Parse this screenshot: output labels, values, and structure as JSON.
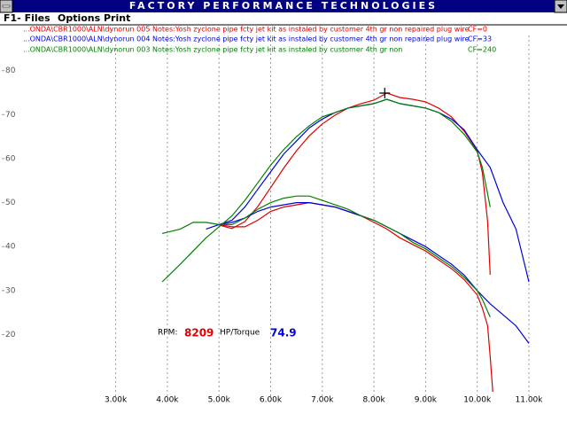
{
  "window": {
    "title": "FACTORY PERFORMANCE TECHNOLOGIES",
    "menu": [
      "F1- Files",
      "Options",
      "Print"
    ]
  },
  "readout": {
    "rpm_label": "RPM:",
    "rpm": 8209,
    "value_label": "HP/Torque",
    "value": 74.9
  },
  "chart_data": {
    "type": "line",
    "xlim": [
      1000,
      11000
    ],
    "ylim": [
      6,
      88
    ],
    "xticks": [
      {
        "value": 3000,
        "label": "3.00k"
      },
      {
        "value": 4000,
        "label": "4.00k"
      },
      {
        "value": 5000,
        "label": "5.00k"
      },
      {
        "value": 6000,
        "label": "6.00k"
      },
      {
        "value": 7000,
        "label": "7.00k"
      },
      {
        "value": 8000,
        "label": "8.00k"
      },
      {
        "value": 9000,
        "label": "9.00k"
      },
      {
        "value": 10000,
        "label": "10.00k"
      },
      {
        "value": 11000,
        "label": "11.00k"
      }
    ],
    "yticks": [
      20,
      30,
      40,
      50,
      60,
      70,
      80
    ],
    "grid": "x",
    "series": [
      {
        "name": "...ONDA\\CBR1000\\ALN\\dynorun 005",
        "notes": "Notes:Yosh zyclone pipe fcty jet kit as instaled by customer 4th gr non repaired plug wire",
        "cf": "CF=0",
        "color": "#e00000",
        "curves": [
          {
            "x": [
              5000,
              5250,
              5500,
              5750,
              6000,
              6250,
              6500,
              6750,
              7000,
              7250,
              7500,
              7750,
              8000,
              8250,
              8500,
              8750,
              9000,
              9250,
              9500,
              9750,
              10000,
              10100,
              10200,
              10250
            ],
            "values": [
              44.9,
              44.1,
              45.7,
              49.1,
              53.4,
              57.8,
              61.8,
              65.2,
              67.9,
              69.9,
              71.5,
              72.5,
              73.3,
              74.9,
              73.9,
              73.5,
              72.9,
              71.5,
              69.5,
              66.2,
              61.8,
              56.8,
              45.7,
              33.6
            ]
          },
          {
            "x": [
              5000,
              5250,
              5500,
              5750,
              6000,
              6250,
              6500,
              6750,
              7000,
              7250,
              7500,
              7750,
              8000,
              8250,
              8500,
              8750,
              9000,
              9250,
              9500,
              9750,
              10000,
              10100,
              10200,
              10250,
              10300
            ],
            "values": [
              45,
              44.5,
              44.5,
              46,
              48,
              49,
              49.5,
              50,
              49.5,
              49,
              48,
              47,
              45.5,
              44,
              42,
              40.5,
              39,
              37,
              35,
              32.5,
              29,
              26,
              22,
              15,
              7
            ]
          }
        ]
      },
      {
        "name": "...ONDA\\CBR1000\\ALN\\dynorun 004",
        "notes": "Notes:Yosh zyclone pipe fcty jet kit as instaled by customer 4th gr non repaired plug wire",
        "cf": "CF=33",
        "color": "#0000e0",
        "curves": [
          {
            "x": [
              5000,
              5250,
              5500,
              5750,
              6000,
              6250,
              6500,
              6750,
              7000,
              7250,
              7500,
              7750,
              8000,
              8250,
              8500,
              8750,
              9000,
              9250,
              9500,
              9750,
              10000,
              10250,
              10500,
              10750,
              11000
            ],
            "values": [
              45,
              46,
              49,
              53,
              57,
              61,
              64,
              67,
              69,
              70.5,
              71.5,
              72,
              72.5,
              73.5,
              72.5,
              72,
              71.5,
              70.5,
              69,
              66.5,
              62,
              58,
              50,
              44,
              32
            ]
          },
          {
            "x": [
              4750,
              5000,
              5250,
              5500,
              5750,
              6000,
              6250,
              6500,
              6750,
              7000,
              7250,
              7500,
              7750,
              8000,
              8250,
              8500,
              8750,
              9000,
              9250,
              9500,
              9750,
              10000,
              10250,
              10500,
              10750,
              11000
            ],
            "values": [
              44,
              45,
              45.5,
              46.5,
              48,
              49,
              49.5,
              50,
              50,
              49.5,
              49,
              48,
              47,
              46,
              44.5,
              43,
              41.5,
              40,
              38,
              36,
              33.5,
              30,
              27,
              24.5,
              22,
              18
            ]
          }
        ]
      },
      {
        "name": "...ONDA\\CBR1000\\ALN\\dynorun 003",
        "notes": "Notes:Yosh zyclone pipe fcty jet kit as instaled by customer 4th gr non",
        "cf": "CF=240",
        "color": "#008000",
        "curves": [
          {
            "x": [
              3900,
              4250,
              4500,
              4750,
              5000,
              5250,
              5500,
              5750,
              6000,
              6250,
              6500,
              6750,
              7000,
              7250,
              7500,
              7750,
              8000,
              8250,
              8500,
              8750,
              9000,
              9250,
              9500,
              9750,
              10000,
              10100,
              10200,
              10250
            ],
            "values": [
              32,
              36,
              39,
              42,
              44.5,
              47,
              50.5,
              54.5,
              58.5,
              62,
              65,
              67.5,
              69.5,
              70.5,
              71.5,
              72,
              72.5,
              73.5,
              72.5,
              72,
              71.5,
              70.5,
              68.5,
              65.5,
              61.5,
              58,
              52,
              49
            ]
          },
          {
            "x": [
              3900,
              4250,
              4500,
              4750,
              5000,
              5250,
              5500,
              5750,
              6000,
              6250,
              6500,
              6750,
              7000,
              7250,
              7500,
              7750,
              8000,
              8250,
              8500,
              8750,
              9000,
              9250,
              9500,
              9750,
              10000,
              10100,
              10250
            ],
            "values": [
              43,
              44,
              45.5,
              45.5,
              45,
              45,
              46.5,
              48.5,
              50,
              51,
              51.5,
              51.5,
              50.5,
              49.5,
              48.5,
              47,
              46,
              44.5,
              43,
              41,
              39.5,
              37.5,
              35.5,
              33,
              30,
              28,
              24
            ]
          }
        ]
      }
    ]
  }
}
